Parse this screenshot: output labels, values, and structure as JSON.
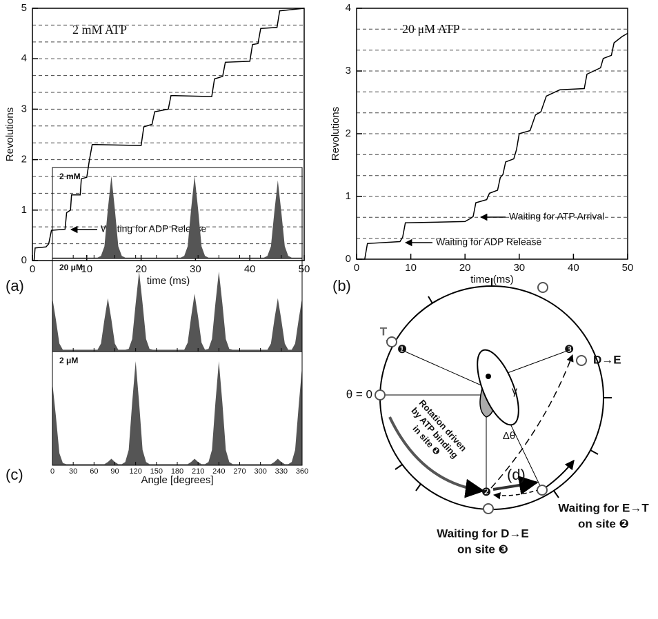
{
  "chart_data": [
    {
      "type": "line",
      "panel_label": "(a)",
      "title": "2 mM ATP",
      "xlabel": "time (ms)",
      "ylabel": "Revolutions",
      "annotations": [
        "Waiting for ADP Release"
      ],
      "x": [
        0,
        0.3,
        0.5,
        2.5,
        3,
        3.5,
        6,
        6.3,
        7,
        7.2,
        8.8,
        9,
        10,
        10.5,
        11,
        20,
        20.5,
        22,
        22.5,
        25,
        25.5,
        33,
        33.5,
        35,
        35.5,
        40,
        40.5,
        41.5,
        42,
        45,
        45.5,
        50
      ],
      "values": [
        0,
        0,
        0.25,
        0.27,
        0.33,
        0.6,
        0.62,
        0.95,
        1.0,
        1.3,
        1.3,
        1.62,
        1.65,
        2.0,
        2.3,
        2.28,
        2.65,
        2.7,
        2.95,
        3.0,
        3.27,
        3.25,
        3.6,
        3.65,
        3.93,
        3.95,
        4.28,
        4.3,
        4.6,
        4.62,
        4.95,
        5.0
      ],
      "color": "#000000",
      "xlim": [
        0,
        50
      ],
      "ylim": [
        0,
        5
      ],
      "xticks": [
        0,
        10,
        20,
        30,
        40,
        50
      ],
      "yticks": [
        0,
        1,
        2,
        3,
        4,
        5
      ],
      "dashed_lines": [
        0.333,
        0.667,
        1,
        1.333,
        1.667,
        2,
        2.333,
        2.667,
        3,
        3.333,
        3.667,
        4,
        4.333,
        4.667
      ]
    },
    {
      "type": "line",
      "panel_label": "(b)",
      "title": "20 μM ATP",
      "xlabel": "time (ms)",
      "ylabel": "Revolutions",
      "annotations": [
        "Waiting for ATP Arrival",
        "Waiting for ADP Release"
      ],
      "x": [
        0,
        1.5,
        2,
        8,
        8.5,
        9,
        20,
        21,
        21.5,
        22,
        24,
        24.5,
        26,
        26.5,
        27,
        27.5,
        29,
        29.5,
        30,
        32,
        33,
        34,
        35,
        37,
        37.5,
        42,
        42.5,
        45,
        45.5,
        47,
        47.5,
        49,
        50
      ],
      "values": [
        0,
        0,
        0.25,
        0.28,
        0.35,
        0.58,
        0.6,
        0.65,
        0.68,
        0.9,
        0.95,
        1.05,
        1.1,
        1.3,
        1.35,
        1.55,
        1.6,
        1.75,
        2.0,
        2.05,
        2.3,
        2.35,
        2.6,
        2.68,
        2.7,
        2.72,
        2.95,
        3.05,
        3.2,
        3.25,
        3.45,
        3.55,
        3.6
      ],
      "color": "#000000",
      "xlim": [
        0,
        50
      ],
      "ylim": [
        0,
        4
      ],
      "xticks": [
        0,
        10,
        20,
        30,
        40,
        50
      ],
      "yticks": [
        0,
        1,
        2,
        3,
        4
      ],
      "dashed_lines": [
        0.333,
        0.667,
        1,
        1.333,
        1.667,
        2,
        2.333,
        2.667,
        3,
        3.333,
        3.667
      ]
    },
    {
      "type": "area",
      "panel_label": "(c)",
      "xlabel": "Angle [degrees]",
      "x": [
        0,
        5,
        10,
        15,
        20,
        25,
        30,
        35,
        40,
        45,
        50,
        55,
        60,
        65,
        70,
        75,
        80,
        85,
        90,
        95,
        100,
        105,
        110,
        115,
        120,
        125,
        130,
        135,
        140,
        145,
        150,
        155,
        160,
        165,
        170,
        175,
        180,
        185,
        190,
        195,
        200,
        205,
        210,
        215,
        220,
        225,
        230,
        235,
        240,
        245,
        250,
        255,
        260,
        265,
        270,
        275,
        280,
        285,
        290,
        295,
        300,
        305,
        310,
        315,
        320,
        325,
        330,
        335,
        340,
        345,
        350,
        355,
        360
      ],
      "xlim": [
        0,
        360
      ],
      "ylim": [
        0,
        1
      ],
      "xticks": [
        0,
        30,
        60,
        90,
        120,
        150,
        180,
        210,
        240,
        270,
        300,
        330,
        360
      ],
      "series": [
        {
          "name": "2 mM",
          "color": "#555555",
          "values": [
            0.01,
            0.01,
            0.01,
            0.01,
            0.01,
            0.01,
            0.01,
            0.01,
            0.01,
            0.01,
            0.01,
            0.01,
            0.01,
            0.01,
            0.03,
            0.14,
            0.57,
            0.95,
            0.57,
            0.14,
            0.03,
            0.01,
            0.01,
            0.01,
            0.01,
            0.01,
            0.01,
            0.01,
            0.01,
            0.01,
            0.01,
            0.01,
            0.01,
            0.01,
            0.01,
            0.01,
            0.01,
            0.01,
            0.03,
            0.14,
            0.57,
            0.95,
            0.57,
            0.14,
            0.03,
            0.01,
            0.01,
            0.01,
            0.01,
            0.01,
            0.01,
            0.01,
            0.01,
            0.01,
            0.01,
            0.01,
            0.01,
            0.01,
            0.01,
            0.01,
            0.01,
            0.01,
            0.03,
            0.14,
            0.54,
            0.9,
            0.54,
            0.14,
            0.03,
            0.01,
            0.01,
            0.01,
            0.01
          ]
        },
        {
          "name": "20 μM",
          "color": "#555555",
          "values": [
            0.6,
            0.36,
            0.09,
            0.02,
            0.02,
            0.02,
            0.02,
            0.02,
            0.02,
            0.02,
            0.02,
            0.02,
            0.02,
            0.02,
            0.09,
            0.36,
            0.6,
            0.36,
            0.09,
            0.02,
            0.02,
            0.02,
            0.03,
            0.14,
            0.54,
            0.9,
            0.54,
            0.14,
            0.03,
            0.02,
            0.02,
            0.02,
            0.02,
            0.02,
            0.02,
            0.02,
            0.02,
            0.02,
            0.02,
            0.1,
            0.39,
            0.65,
            0.39,
            0.1,
            0.02,
            0.03,
            0.14,
            0.54,
            0.9,
            0.54,
            0.14,
            0.03,
            0.02,
            0.02,
            0.02,
            0.02,
            0.02,
            0.02,
            0.02,
            0.02,
            0.02,
            0.02,
            0.02,
            0.09,
            0.36,
            0.6,
            0.36,
            0.09,
            0.02,
            0.02,
            0.09,
            0.36,
            0.6
          ]
        },
        {
          "name": "2 μM",
          "color": "#555555",
          "values": [
            0.75,
            0.45,
            0.11,
            0.02,
            0.01,
            0.01,
            0.01,
            0.01,
            0.01,
            0.01,
            0.01,
            0.01,
            0.01,
            0.01,
            0.01,
            0.01,
            0.03,
            0.06,
            0.03,
            0.01,
            0.01,
            0.03,
            0.14,
            0.57,
            0.95,
            0.57,
            0.14,
            0.03,
            0.01,
            0.01,
            0.01,
            0.01,
            0.01,
            0.01,
            0.01,
            0.01,
            0.01,
            0.01,
            0.01,
            0.01,
            0.03,
            0.06,
            0.03,
            0.01,
            0.01,
            0.03,
            0.14,
            0.57,
            0.95,
            0.57,
            0.14,
            0.03,
            0.01,
            0.01,
            0.01,
            0.01,
            0.01,
            0.01,
            0.01,
            0.01,
            0.01,
            0.01,
            0.01,
            0.01,
            0.03,
            0.06,
            0.03,
            0.01,
            0.01,
            0.03,
            0.14,
            0.54,
            0.9
          ]
        }
      ]
    }
  ],
  "diagram": {
    "panel_label": "(d)",
    "t": "T",
    "de": "D→E",
    "theta0": "θ = 0",
    "gamma": "γ",
    "dtheta": "Δθ",
    "rotation": [
      "Rotation driven",
      "by ATP binding",
      "in site ❶"
    ],
    "sites": [
      "❶",
      "❷",
      "❸"
    ],
    "wait_de": [
      "Waiting for D→E",
      "on site ❸"
    ],
    "wait_et": [
      "Waiting for E→T",
      "on site ❷"
    ]
  }
}
